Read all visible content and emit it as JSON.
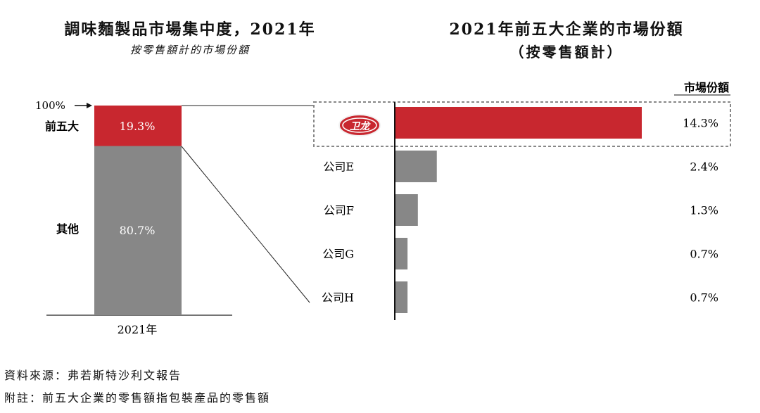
{
  "left_chart": {
    "title": "調味麵製品市場集中度，2021年",
    "subtitle": "按零售額計的市場份額"
  },
  "right_chart": {
    "title": "2021年前五大企業的市場份額",
    "subtitle": "（按零售額計）",
    "column_header": "市場份額",
    "logo_text": "卫龙"
  },
  "footnotes": {
    "source": "資料來源：弗若斯特沙利文報告",
    "note": "附註：前五大企業的零售額指包裝產品的零售額"
  },
  "colors": {
    "red": "#C8272F",
    "gray": "#878787"
  },
  "chart_data": [
    {
      "type": "bar",
      "stacked": true,
      "title": "調味麵製品市場集中度，2021年",
      "subtitle": "按零售額計的市場份額",
      "categories": [
        "2021年"
      ],
      "top_marker": "100%",
      "series": [
        {
          "name": "其他",
          "label": "80.7%",
          "values": [
            80.7
          ],
          "color": "#878787"
        },
        {
          "name": "前五大",
          "label": "19.3%",
          "values": [
            19.3
          ],
          "color": "#C8272F"
        }
      ],
      "ylim": [
        0,
        100
      ]
    },
    {
      "type": "bar",
      "orientation": "horizontal",
      "title": "2021年前五大企業的市場份額",
      "subtitle": "（按零售額計）",
      "value_header": "市場份額",
      "categories": [
        "卫龙",
        "公司E",
        "公司F",
        "公司G",
        "公司H"
      ],
      "values": [
        14.3,
        2.4,
        1.3,
        0.7,
        0.7
      ],
      "value_labels": [
        "14.3%",
        "2.4%",
        "1.3%",
        "0.7%",
        "0.7%"
      ],
      "highlight_first": true,
      "xlim": [
        0,
        14.3
      ]
    }
  ]
}
